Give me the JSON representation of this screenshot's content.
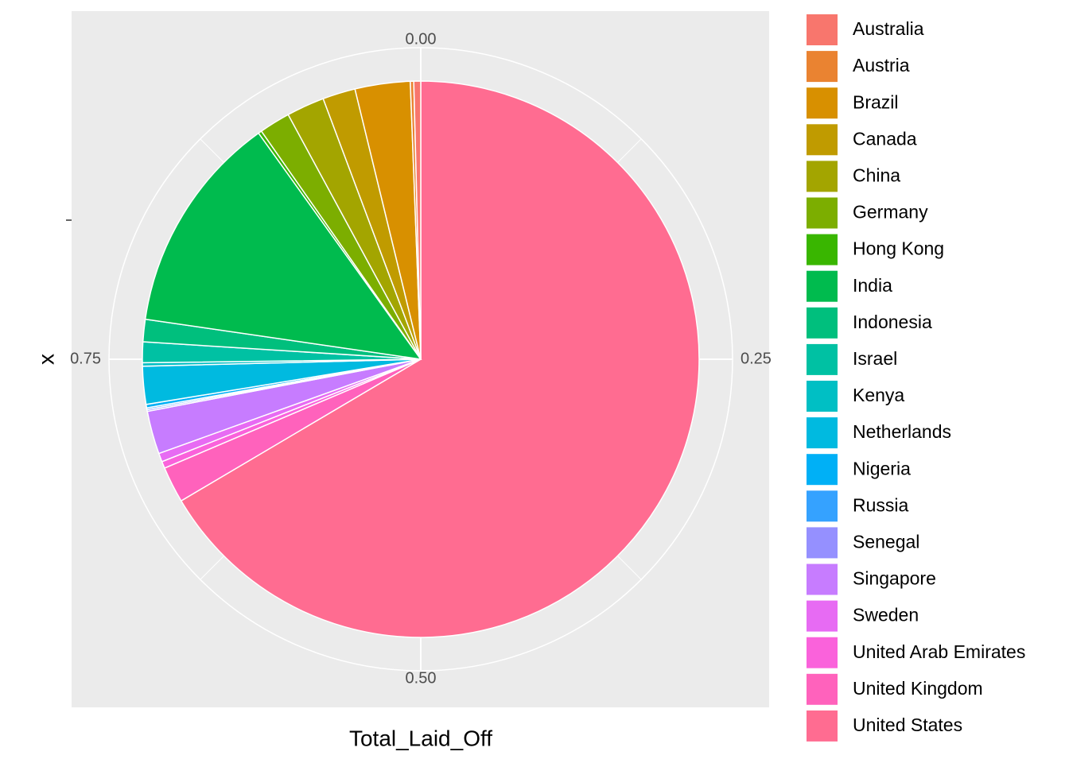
{
  "chart_data": {
    "type": "pie",
    "x_label": "Total_Laid_Off",
    "y_label": "x",
    "categories": [
      "Australia",
      "Austria",
      "Brazil",
      "Canada",
      "China",
      "Germany",
      "Hong Kong",
      "India",
      "Indonesia",
      "Israel",
      "Kenya",
      "Netherlands",
      "Nigeria",
      "Russia",
      "Senegal",
      "Singapore",
      "Sweden",
      "United Arab Emirates",
      "United Kingdom",
      "United States"
    ],
    "values": [
      0.004,
      0.002,
      0.032,
      0.019,
      0.022,
      0.018,
      0.002,
      0.128,
      0.013,
      0.012,
      0.002,
      0.022,
      0.002,
      0.001,
      0.001,
      0.025,
      0.005,
      0.004,
      0.021,
      0.665
    ],
    "colors": [
      "#F8766D",
      "#EA8331",
      "#D89000",
      "#C09B00",
      "#A3A500",
      "#7CAE00",
      "#39B600",
      "#00BB4E",
      "#00BF7D",
      "#00C1A3",
      "#00BFC4",
      "#00BAE0",
      "#00B0F6",
      "#35A2FF",
      "#9590FF",
      "#C77CFF",
      "#E76BF3",
      "#FA62DB",
      "#FF62BC",
      "#FF6C91"
    ],
    "thetalim": [
      0,
      1
    ],
    "thetaticks": [
      {
        "value": 0,
        "label": "0.00"
      },
      0.25,
      {
        "value": 0.5,
        "label": "0.50"
      },
      0.75
    ],
    "grid": true
  }
}
